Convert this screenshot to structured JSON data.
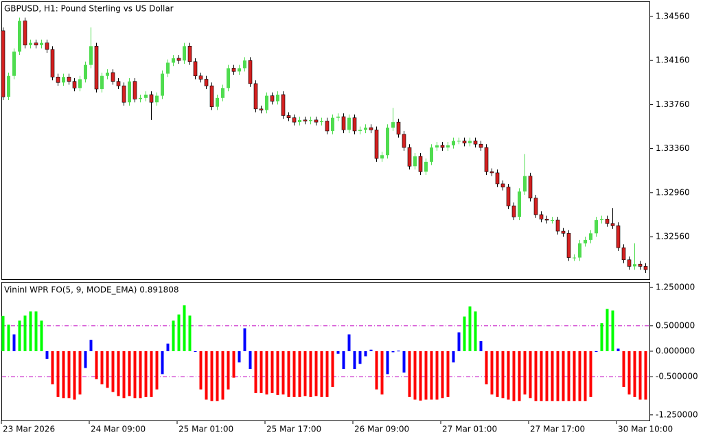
{
  "chart_data": [
    {
      "type": "candlestick",
      "title": "GBPUSD, H1:  Pound Sterling vs US Dollar",
      "up_color": "#4fdc4f",
      "down_color": "#d42020",
      "ylim": [
        1.32174,
        1.34697
      ],
      "yticks": [
        {
          "value": 1.3456,
          "label": "1.34560"
        },
        {
          "value": 1.3416,
          "label": "1.34160"
        },
        {
          "value": 1.3376,
          "label": "1.33760"
        },
        {
          "value": 1.3336,
          "label": "1.33360"
        },
        {
          "value": 1.3296,
          "label": "1.32960"
        },
        {
          "value": 1.3256,
          "label": "1.32560"
        }
      ],
      "open": [
        1.3443,
        1.3383,
        1.3402,
        1.3424,
        1.3452,
        1.343,
        1.3432,
        1.343,
        1.3432,
        1.3426,
        1.3401,
        1.3396,
        1.3401,
        1.3397,
        1.3391,
        1.3399,
        1.3412,
        1.3429,
        1.339,
        1.3402,
        1.3405,
        1.3397,
        1.3393,
        1.3378,
        1.3397,
        1.3381,
        1.3382,
        1.3385,
        1.3378,
        1.3384,
        1.3404,
        1.3414,
        1.3418,
        1.3416,
        1.3429,
        1.3415,
        1.3402,
        1.3399,
        1.3393,
        1.3374,
        1.3382,
        1.3391,
        1.3409,
        1.3406,
        1.3409,
        1.3416,
        1.3395,
        1.3372,
        1.3371,
        1.3384,
        1.3379,
        1.3385,
        1.3366,
        1.3364,
        1.336,
        1.3362,
        1.3361,
        1.3362,
        1.336,
        1.3361,
        1.3352,
        1.3364,
        1.3365,
        1.3353,
        1.3364,
        1.3352,
        1.3353,
        1.3355,
        1.3353,
        1.3327,
        1.333,
        1.3355,
        1.336,
        1.3349,
        1.3337,
        1.332,
        1.3329,
        1.3315,
        1.3324,
        1.3337,
        1.3339,
        1.3337,
        1.3339,
        1.3343,
        1.3343,
        1.3341,
        1.3343,
        1.334,
        1.3337,
        1.3315,
        1.3314,
        1.3304,
        1.3301,
        1.3284,
        1.3274,
        1.3297,
        1.3311,
        1.3291,
        1.3276,
        1.3272,
        1.3271,
        1.3271,
        1.3261,
        1.3259,
        1.3237,
        1.3237,
        1.325,
        1.3253,
        1.3259,
        1.3271,
        1.3272,
        1.3268,
        1.3266,
        1.3246,
        1.3235,
        1.3229,
        1.3231,
        1.3229
      ],
      "high": [
        1.3446,
        1.3405,
        1.3427,
        1.3455,
        1.3455,
        1.3435,
        1.3435,
        1.3435,
        1.3435,
        1.3429,
        1.3404,
        1.3404,
        1.3404,
        1.34,
        1.3402,
        1.3415,
        1.3446,
        1.3432,
        1.3405,
        1.3408,
        1.3408,
        1.34,
        1.3396,
        1.34,
        1.34,
        1.3385,
        1.3388,
        1.3388,
        1.3387,
        1.3407,
        1.3417,
        1.3421,
        1.3421,
        1.3432,
        1.3432,
        1.3418,
        1.3405,
        1.3402,
        1.3396,
        1.3385,
        1.3394,
        1.3412,
        1.3412,
        1.3412,
        1.3419,
        1.3419,
        1.3398,
        1.3375,
        1.3387,
        1.3387,
        1.3388,
        1.3388,
        1.3369,
        1.3367,
        1.3365,
        1.3365,
        1.3365,
        1.3365,
        1.3364,
        1.3364,
        1.3367,
        1.3368,
        1.3368,
        1.3367,
        1.3367,
        1.3356,
        1.3358,
        1.3358,
        1.3356,
        1.3333,
        1.3358,
        1.3373,
        1.3363,
        1.3352,
        1.334,
        1.3332,
        1.3332,
        1.3327,
        1.334,
        1.3342,
        1.3342,
        1.3342,
        1.3346,
        1.3346,
        1.3346,
        1.3346,
        1.3346,
        1.3343,
        1.334,
        1.3318,
        1.3317,
        1.3307,
        1.3304,
        1.3287,
        1.33,
        1.3331,
        1.3314,
        1.3294,
        1.3279,
        1.3275,
        1.3274,
        1.3274,
        1.3264,
        1.3262,
        1.324,
        1.3253,
        1.3256,
        1.3262,
        1.3274,
        1.3275,
        1.3275,
        1.3282,
        1.3269,
        1.3249,
        1.3238,
        1.325,
        1.3234,
        1.3232
      ],
      "low": [
        1.338,
        1.338,
        1.3399,
        1.3421,
        1.3427,
        1.3427,
        1.3427,
        1.3427,
        1.3423,
        1.3398,
        1.3393,
        1.3393,
        1.3394,
        1.3388,
        1.3388,
        1.3396,
        1.3409,
        1.3387,
        1.3387,
        1.3399,
        1.3394,
        1.339,
        1.3375,
        1.3375,
        1.3378,
        1.3378,
        1.3379,
        1.3362,
        1.3375,
        1.3381,
        1.3401,
        1.3411,
        1.3413,
        1.3413,
        1.3412,
        1.3399,
        1.3396,
        1.339,
        1.3371,
        1.3371,
        1.3379,
        1.3388,
        1.3403,
        1.3403,
        1.3406,
        1.3392,
        1.3369,
        1.3368,
        1.3368,
        1.3376,
        1.3376,
        1.3363,
        1.3361,
        1.3357,
        1.3357,
        1.3358,
        1.3358,
        1.3357,
        1.3357,
        1.3349,
        1.3349,
        1.3361,
        1.335,
        1.335,
        1.3349,
        1.3349,
        1.335,
        1.335,
        1.3324,
        1.3324,
        1.3327,
        1.3352,
        1.3346,
        1.3334,
        1.3317,
        1.3317,
        1.3312,
        1.3312,
        1.3321,
        1.3334,
        1.3334,
        1.3334,
        1.3336,
        1.334,
        1.3338,
        1.3338,
        1.3337,
        1.3334,
        1.3312,
        1.3311,
        1.3301,
        1.3298,
        1.3281,
        1.3271,
        1.3271,
        1.3294,
        1.3288,
        1.3273,
        1.3269,
        1.3268,
        1.3268,
        1.3258,
        1.3256,
        1.3234,
        1.3234,
        1.3234,
        1.3247,
        1.325,
        1.3256,
        1.3268,
        1.3265,
        1.3263,
        1.3243,
        1.3232,
        1.3226,
        1.3226,
        1.3226,
        1.3223
      ],
      "close": [
        1.3383,
        1.3402,
        1.3424,
        1.3452,
        1.343,
        1.3432,
        1.343,
        1.3432,
        1.3426,
        1.3401,
        1.3396,
        1.3401,
        1.3397,
        1.3391,
        1.3399,
        1.3412,
        1.3429,
        1.339,
        1.3402,
        1.3405,
        1.3397,
        1.3393,
        1.3378,
        1.3397,
        1.3381,
        1.3382,
        1.3385,
        1.3378,
        1.3384,
        1.3404,
        1.3414,
        1.3418,
        1.3416,
        1.3429,
        1.3415,
        1.3402,
        1.3399,
        1.3393,
        1.3374,
        1.3382,
        1.3391,
        1.3409,
        1.3406,
        1.3409,
        1.3416,
        1.3395,
        1.3372,
        1.3371,
        1.3384,
        1.3379,
        1.3385,
        1.3366,
        1.3364,
        1.336,
        1.3362,
        1.3361,
        1.3362,
        1.336,
        1.3361,
        1.3352,
        1.3364,
        1.3365,
        1.3353,
        1.3364,
        1.3352,
        1.3353,
        1.3355,
        1.3353,
        1.3327,
        1.333,
        1.3355,
        1.336,
        1.3349,
        1.3337,
        1.332,
        1.3329,
        1.3315,
        1.3324,
        1.3337,
        1.3339,
        1.3337,
        1.3339,
        1.3343,
        1.3343,
        1.3341,
        1.3343,
        1.334,
        1.3337,
        1.3315,
        1.3314,
        1.3304,
        1.3301,
        1.3284,
        1.3274,
        1.3297,
        1.3311,
        1.3291,
        1.3276,
        1.3272,
        1.3271,
        1.3271,
        1.3261,
        1.3259,
        1.3237,
        1.3237,
        1.325,
        1.3253,
        1.3259,
        1.3271,
        1.3272,
        1.3268,
        1.3266,
        1.3246,
        1.3235,
        1.3229,
        1.3231,
        1.3229,
        1.3226
      ]
    },
    {
      "type": "histogram_bar",
      "title": "VininI WPR FO(5, 9, MODE_EMA) 0.891808",
      "colors": {
        "up": "#00ff00",
        "mid": "#0000ff",
        "down": "#ff0000"
      },
      "levels": [
        0.5,
        -0.5
      ],
      "level_color": "#c000c0",
      "ylim": [
        -1.36,
        1.36
      ],
      "yticks": [
        {
          "value": 1.25,
          "label": "1.250000"
        },
        {
          "value": 0.5,
          "label": "0.500000"
        },
        {
          "value": 0,
          "label": "0.000000"
        },
        {
          "value": -0.5,
          "label": "-0.500000"
        },
        {
          "value": -1.25,
          "label": "-1.250000"
        }
      ],
      "categories": [
        "23 Mar 2026",
        null,
        null,
        null,
        null,
        null,
        null,
        null,
        null,
        null,
        null,
        null,
        null,
        null,
        null,
        null,
        "24 Mar 09:00",
        null,
        null,
        null,
        null,
        null,
        null,
        null,
        null,
        null,
        null,
        null,
        null,
        null,
        null,
        null,
        "25 Mar 01:00",
        null,
        null,
        null,
        null,
        null,
        null,
        null,
        null,
        null,
        null,
        null,
        null,
        null,
        null,
        null,
        "25 Mar 17:00",
        null,
        null,
        null,
        null,
        null,
        null,
        null,
        null,
        null,
        null,
        null,
        null,
        null,
        null,
        null,
        "26 Mar 09:00",
        null,
        null,
        null,
        null,
        null,
        null,
        null,
        null,
        null,
        null,
        null,
        null,
        null,
        null,
        null,
        "27 Mar 01:00",
        null,
        null,
        null,
        null,
        null,
        null,
        null,
        null,
        null,
        null,
        null,
        null,
        null,
        null,
        null,
        "27 Mar 17:00",
        null,
        null,
        null,
        null,
        null,
        null,
        null,
        null,
        null,
        null,
        null,
        null,
        null,
        null,
        null,
        "30 Mar 10:00",
        null,
        null,
        null,
        null,
        null
      ],
      "values": [
        0.69,
        0.52,
        0.33,
        0.6,
        0.7,
        0.78,
        0.78,
        0.6,
        -0.15,
        -0.65,
        -0.9,
        -0.92,
        -0.92,
        -0.95,
        -0.85,
        -0.33,
        0.22,
        -0.55,
        -0.65,
        -0.72,
        -0.8,
        -0.88,
        -0.92,
        -0.88,
        -0.92,
        -0.92,
        -0.9,
        -0.9,
        -0.75,
        -0.45,
        0.15,
        0.6,
        0.72,
        0.9,
        0.7,
        0,
        -0.75,
        -0.95,
        -0.98,
        -0.98,
        -0.95,
        -0.75,
        -0.52,
        -0.22,
        0.45,
        -0.35,
        -0.82,
        -0.82,
        -0.85,
        -0.82,
        -0.86,
        -0.85,
        -0.9,
        -0.9,
        -0.9,
        -0.88,
        -0.9,
        -0.88,
        -0.9,
        -0.9,
        -0.7,
        -0.05,
        -0.35,
        0.33,
        -0.35,
        -0.25,
        -0.1,
        0.03,
        -0.75,
        -0.85,
        -0.45,
        -0.02,
        0.01,
        -0.42,
        -0.9,
        -0.95,
        -0.97,
        -0.95,
        -0.95,
        -0.95,
        -0.92,
        -0.9,
        -0.22,
        0.37,
        0.68,
        0.88,
        0.78,
        0.2,
        -0.65,
        -0.85,
        -0.9,
        -0.92,
        -0.95,
        -0.98,
        -0.98,
        -0.85,
        -0.92,
        -0.98,
        -0.98,
        -0.98,
        -0.98,
        -0.98,
        -0.98,
        -0.98,
        -0.98,
        -0.98,
        -0.98,
        -0.9,
        0,
        0.55,
        0.83,
        0.8,
        0.05,
        -0.7,
        -0.85,
        -0.9,
        -0.95,
        -0.95
      ]
    }
  ]
}
